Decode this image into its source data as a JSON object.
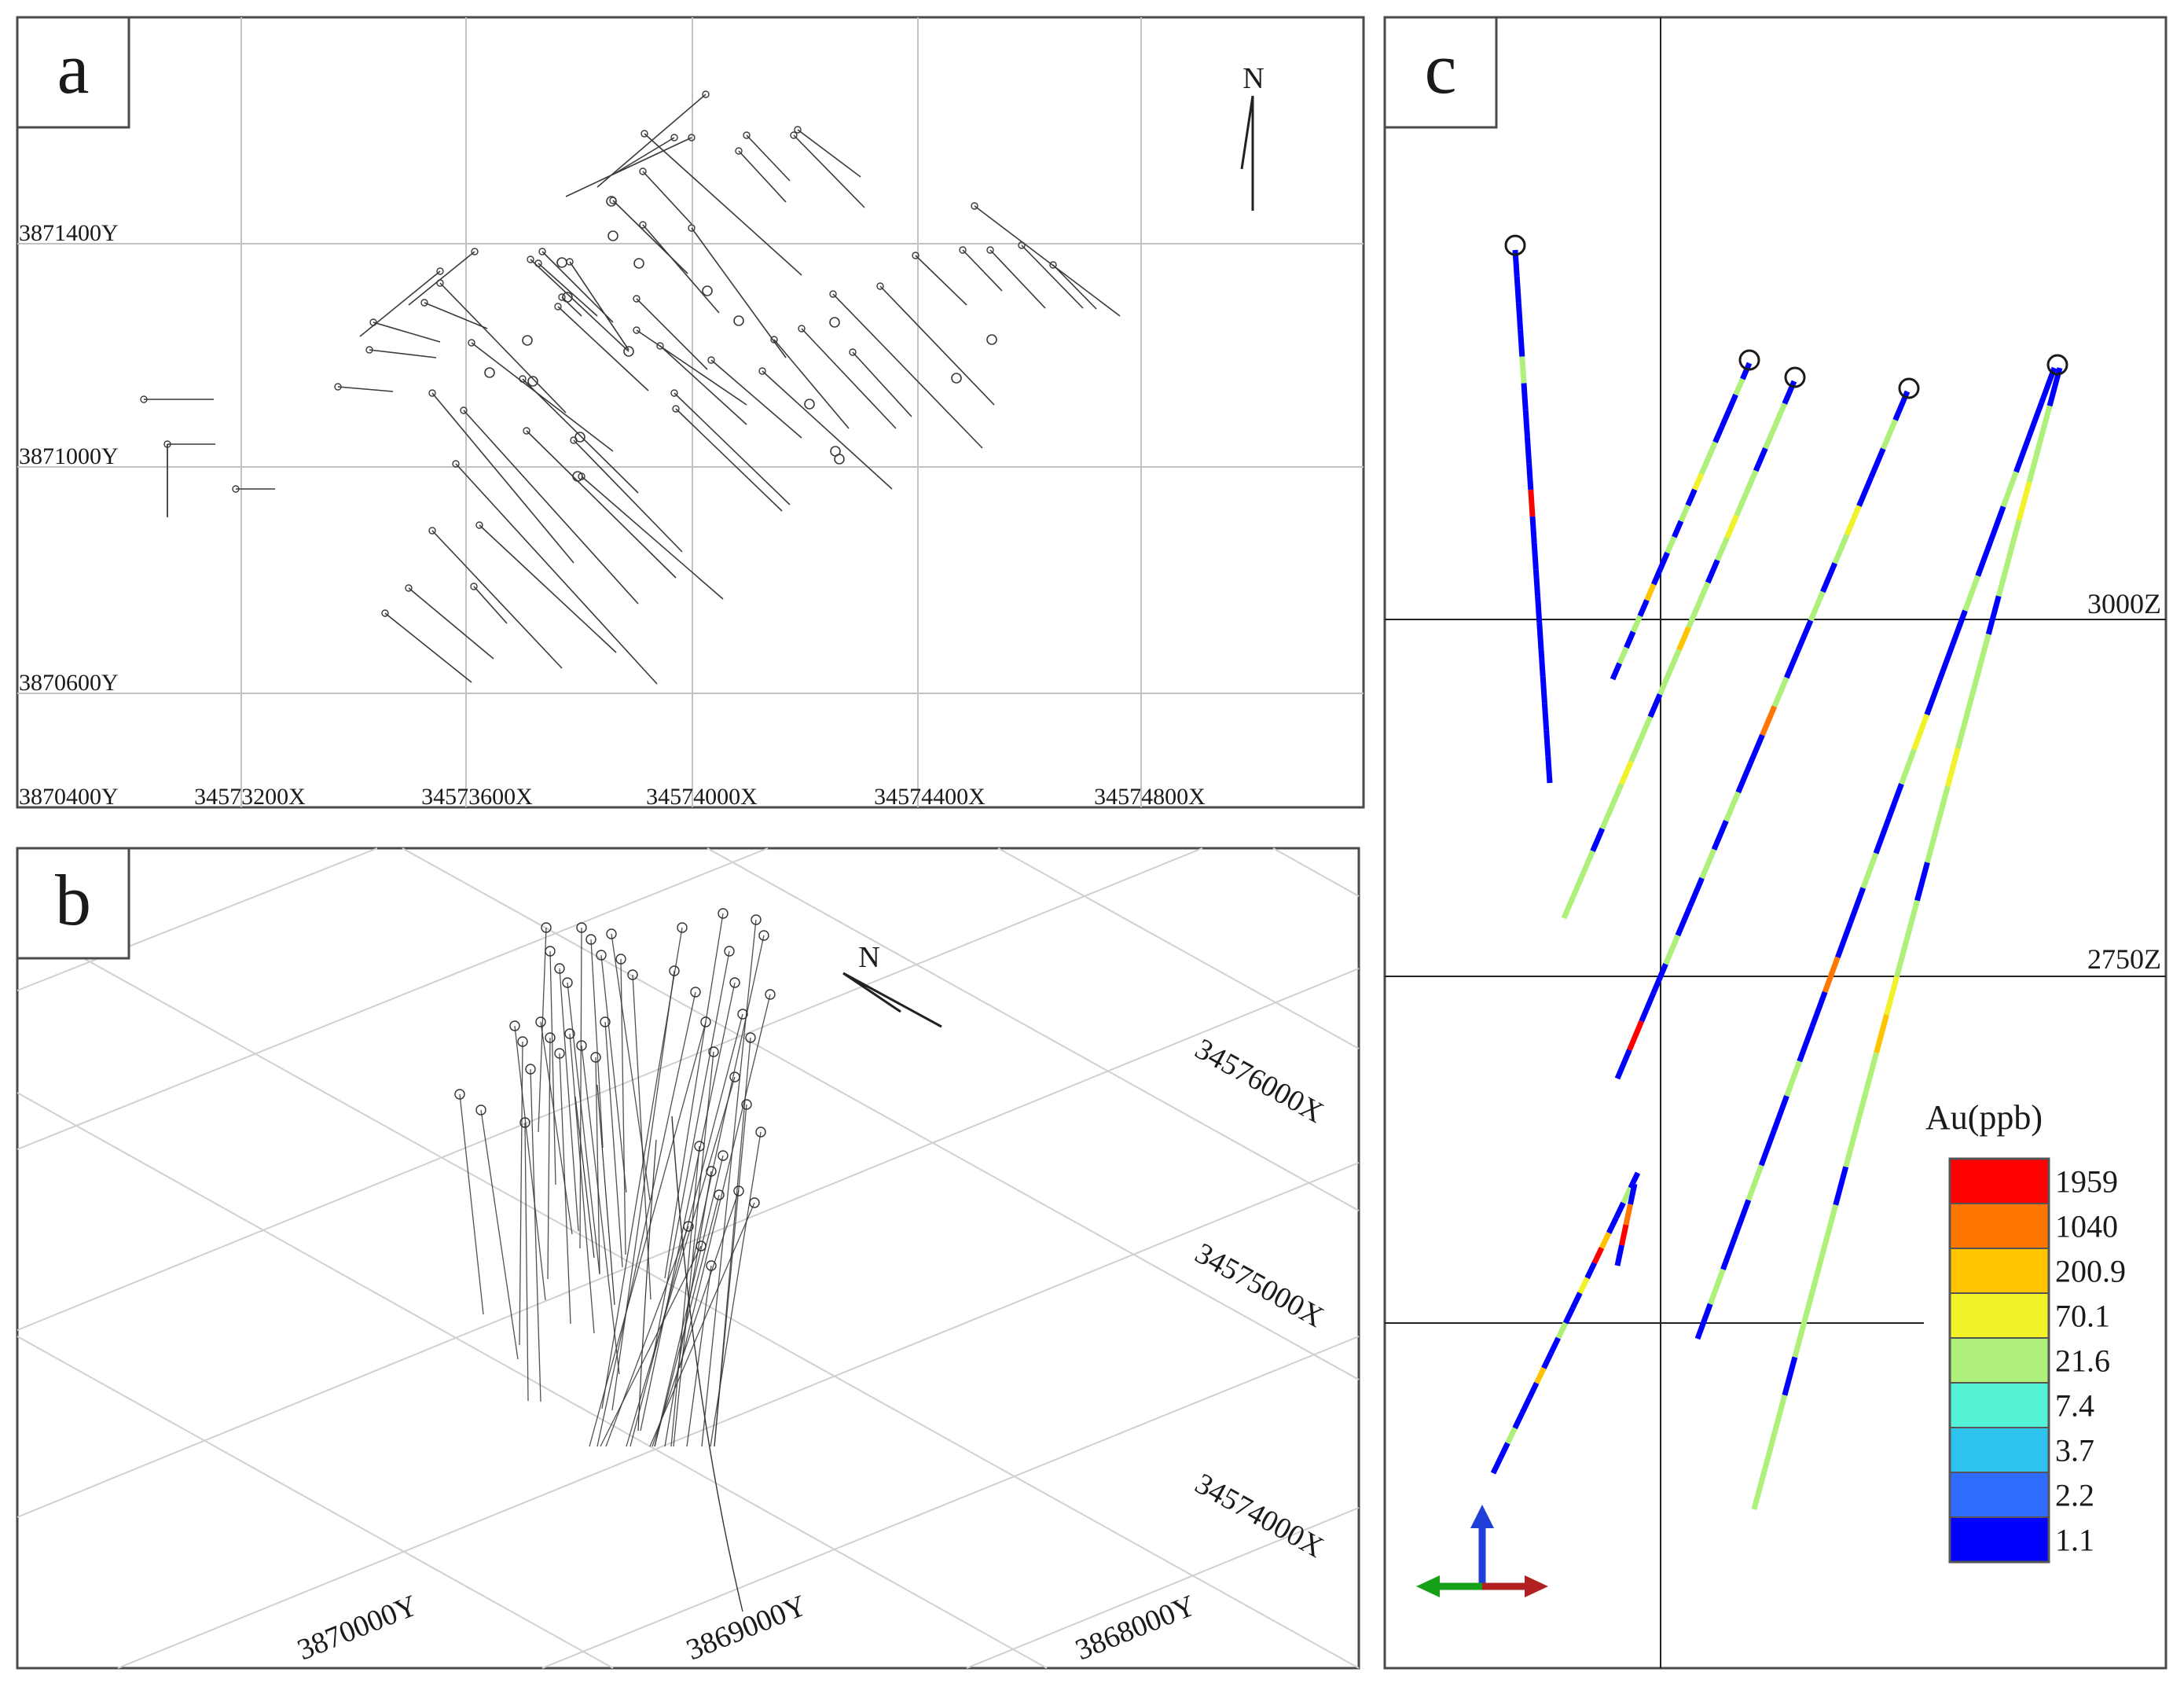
{
  "panels": [
    {
      "letter": "a"
    },
    {
      "letter": "b"
    },
    {
      "letter": "c"
    }
  ],
  "panel_a": {
    "north": "N",
    "y_labels": [
      "3871400Y",
      "3871000Y",
      "3870600Y",
      "3870400Y"
    ],
    "x_labels": [
      "34573200X",
      "34573600X",
      "34574000X",
      "34574400X",
      "34574800X"
    ]
  },
  "panel_b": {
    "north": "N",
    "x_labels": [
      "34576000X",
      "34575000X",
      "34574000X"
    ],
    "y_labels": [
      "3870000Y",
      "3869000Y",
      "3868000Y"
    ]
  },
  "panel_c": {
    "z_labels": [
      "3000Z",
      "2750Z"
    ],
    "legend": {
      "title": "Au(ppb)",
      "items": [
        {
          "label": "1959",
          "color": "#ff0000"
        },
        {
          "label": "1040",
          "color": "#ff7700"
        },
        {
          "label": "200.9",
          "color": "#ffc400"
        },
        {
          "label": "70.1",
          "color": "#f2f22a"
        },
        {
          "label": "21.6",
          "color": "#aef07a"
        },
        {
          "label": "7.4",
          "color": "#55f2d6"
        },
        {
          "label": "3.7",
          "color": "#2ec2ef"
        },
        {
          "label": "2.2",
          "color": "#2f6bff"
        },
        {
          "label": "1.1",
          "color": "#0000ff"
        }
      ]
    },
    "axis_colors": {
      "up": "#1f3fd8",
      "left": "#16a018",
      "right": "#b02020"
    }
  }
}
